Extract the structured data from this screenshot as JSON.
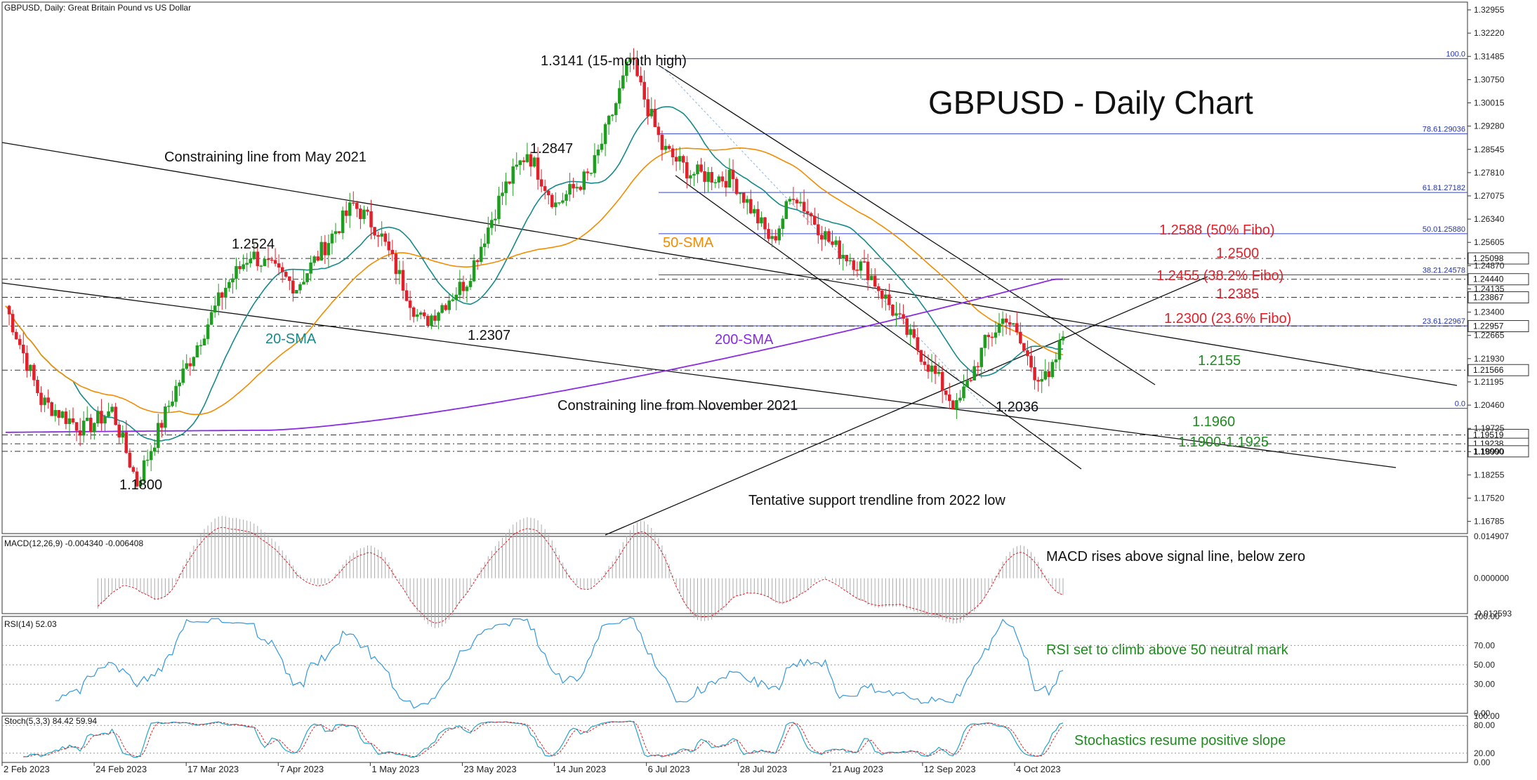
{
  "header": "GBPUSD, Daily:  Great Britain Pound vs US Dollar",
  "chart_title": "GBPUSD - Daily Chart",
  "price_axis_labels": [
    "1.32955",
    "1.32220",
    "1.31485",
    "1.30750",
    "1.30015",
    "1.29280",
    "1.28545",
    "1.27810",
    "1.27075",
    "1.26340",
    "1.25605",
    "1.24870",
    "1.24135",
    "1.23400",
    "1.22665",
    "1.21930",
    "1.21195",
    "1.20460",
    "1.19725",
    "1.18990",
    "1.18255",
    "1.17520",
    "1.16785"
  ],
  "price_boxes": [
    "1.25098",
    "1.24440",
    "1.23867",
    "1.22957",
    "1.21566",
    "1.19519",
    "1.19238",
    "1.19000"
  ],
  "last_price_label": "1.2266",
  "date_labels": [
    "2 Feb 2023",
    "24 Feb 2023",
    "17 Mar 2023",
    "7 Apr 2023",
    "1 May 2023",
    "23 May 2023",
    "14 Jun 2023",
    "6 Jul 2023",
    "28 Jul 2023",
    "21 Aug 2023",
    "12 Sep 2023",
    "4 Oct 2023"
  ],
  "fibo_levels": [
    {
      "label": "100.0",
      "price": 1.3141
    },
    {
      "label": "78.61.29036",
      "price": 1.29036
    },
    {
      "label": "61.81.27182",
      "price": 1.27182
    },
    {
      "label": "50.01.25880",
      "price": 1.2588
    },
    {
      "label": "38.21.24578",
      "price": 1.24578
    },
    {
      "label": "23.61.22967",
      "price": 1.22967
    },
    {
      "label": "0.0",
      "price": 1.2036
    }
  ],
  "annotations": {
    "high": "1.3141 (15-month high)",
    "p12847": "1.2847",
    "p12524": "1.2524",
    "p12307": "1.2307",
    "p11800": "1.1800",
    "p12036": "1.2036",
    "may_line": "Constraining line from May 2021",
    "nov_line": "Constraining line from November 2021",
    "support": "Tentative support trendline from 2022 low",
    "sma20": "20-SMA",
    "sma50": "50-SMA",
    "sma200": "200-SMA",
    "r12588": "1.2588 (50% Fibo)",
    "r12500": "1.2500",
    "r12455": "1.2455 (38.2% Fibo)",
    "r12385": "1.2385",
    "r12300": "1.2300 (23.6% Fibo)",
    "s12155": "1.2155",
    "s11960": "1.1960",
    "s11900": "1.1900-1.1925"
  },
  "macd": {
    "header": "MACD(12,26,9) -0.004340 -0.006408",
    "axis": [
      "0.014907",
      "0.000000",
      "-0.012593"
    ],
    "note": "MACD rises above signal line, below zero"
  },
  "rsi": {
    "header": "RSI(14) 52.03",
    "axis": [
      "100.00",
      "70.00",
      "50.00",
      "30.00",
      "0.00"
    ],
    "note": "RSI set to climb above 50 neutral mark"
  },
  "stoch": {
    "header": "Stoch(5,3,3) 84.42 59.94",
    "axis": [
      "100.00",
      "80.00",
      "20.00",
      "0.00"
    ],
    "note": "Stochastics resume positive slope"
  },
  "colors": {
    "up": "#1e9e1e",
    "down": "#e0202a",
    "sma20": "#168a8a",
    "sma50": "#f28c00",
    "sma200": "#8a2be2",
    "fibo": "#3344cc",
    "rsi": "#3399dd",
    "macd_signal": "#e0202a",
    "stoch_main": "#1fa6c8",
    "stoch_signal": "#e0202a"
  },
  "chart_data": {
    "type": "candlestick",
    "symbol": "GBPUSD",
    "timeframe": "Daily",
    "period": [
      "2 Feb 2023",
      "24 Oct 2023"
    ],
    "ylim": [
      1.164,
      1.332
    ],
    "key_points": [
      {
        "date": "2 Feb 2023",
        "price": 1.236
      },
      {
        "date": "8 Mar 2023",
        "price": 1.18
      },
      {
        "date": "10 Apr 2023",
        "price": 1.2524
      },
      {
        "date": "10 May 2023",
        "price": 1.268
      },
      {
        "date": "25 May 2023",
        "price": 1.2307
      },
      {
        "date": "16 Jun 2023",
        "price": 1.2847
      },
      {
        "date": "14 Jul 2023",
        "price": 1.3141
      },
      {
        "date": "4 Oct 2023",
        "price": 1.2036
      },
      {
        "date": "24 Oct 2023",
        "price": 1.2266
      }
    ]
  }
}
